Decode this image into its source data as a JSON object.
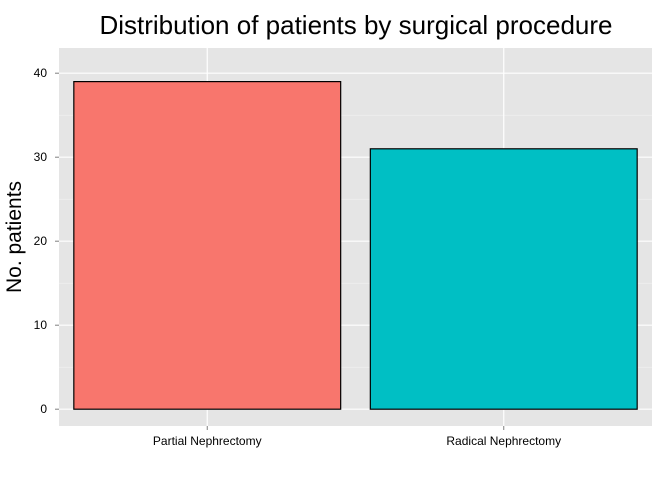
{
  "chart_data": {
    "type": "bar",
    "title": "Distribution of patients by surgical procedure",
    "xlabel": "",
    "ylabel": "No. patients",
    "categories": [
      "Partial Nephrectomy",
      "Radical Nephrectomy"
    ],
    "values": [
      39,
      31
    ],
    "colors": [
      "#F8766D",
      "#00BFC4"
    ],
    "ylim": [
      -2,
      43
    ],
    "yticks": [
      0,
      10,
      20,
      30,
      40
    ],
    "grid": true,
    "panel_background": "#E5E5E5",
    "bar_outline": "#000000"
  }
}
